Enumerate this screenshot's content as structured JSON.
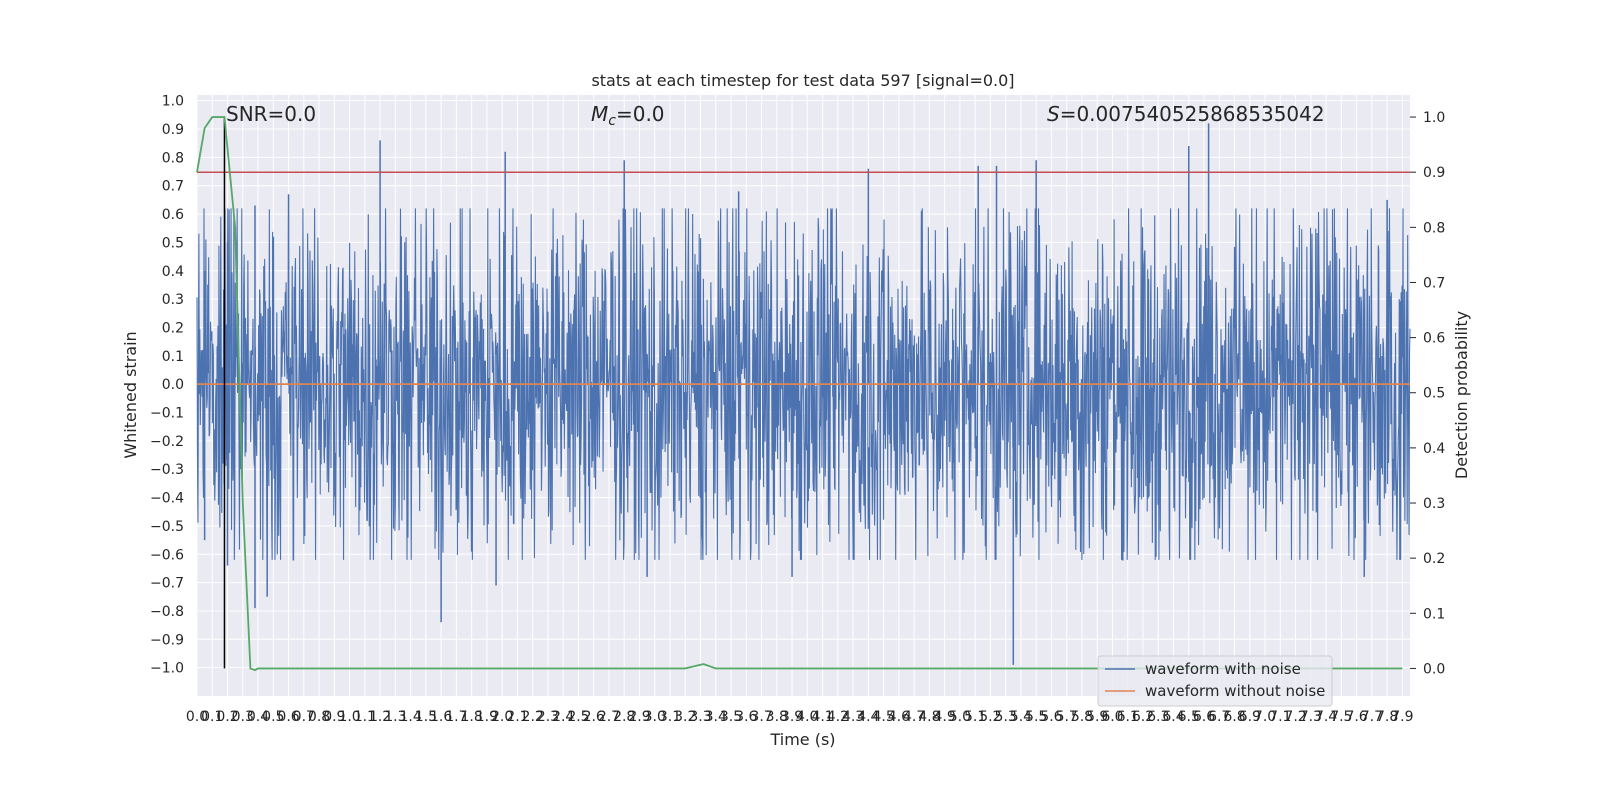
{
  "chart_data": {
    "type": "line",
    "title": "stats at each timestep for test data 597 [signal=0.0]",
    "xlabel": "Time (s)",
    "ylabel": "Whitened strain",
    "y2label": "Detection probability",
    "xlim": [
      0.0,
      7.95
    ],
    "ylim": [
      -1.1,
      1.02
    ],
    "y2lim": [
      -0.05,
      1.04
    ],
    "x_ticks_step": 0.1,
    "x_tick_count": 80,
    "y_ticks": [
      -1.0,
      -0.9,
      -0.8,
      -0.7,
      -0.6,
      -0.5,
      -0.4,
      -0.3,
      -0.2,
      -0.1,
      0.0,
      0.1,
      0.2,
      0.3,
      0.4,
      0.5,
      0.6,
      0.7,
      0.8,
      0.9,
      1.0
    ],
    "y2_ticks": [
      0.0,
      0.1,
      0.2,
      0.3,
      0.4,
      0.5,
      0.6,
      0.7,
      0.8,
      0.9,
      1.0
    ],
    "grid": true,
    "legend_position": "lower-right",
    "annotations": {
      "snr": "SNR=0.0",
      "mc_symbol": "M",
      "mc_sub": "c",
      "mc_value": "=0.0",
      "s_symbol": "S",
      "s_value": "=0.007540525868535042"
    },
    "series": [
      {
        "name": "waveform with noise",
        "color": "#4c72b0",
        "axis": "left",
        "envelope_upper_peaks": [
          [
            0.05,
            0.4
          ],
          [
            0.2,
            0.5
          ],
          [
            0.38,
            0.63
          ],
          [
            0.6,
            0.67
          ],
          [
            1.2,
            0.86
          ],
          [
            2.02,
            0.82
          ],
          [
            2.8,
            0.79
          ],
          [
            3.55,
            0.68
          ],
          [
            4.4,
            0.76
          ],
          [
            5.12,
            0.77
          ],
          [
            5.24,
            0.77
          ],
          [
            5.5,
            0.79
          ],
          [
            6.5,
            0.84
          ],
          [
            6.63,
            0.92
          ],
          [
            7.8,
            0.65
          ]
        ],
        "envelope_lower_peaks": [
          [
            0.05,
            -0.55
          ],
          [
            0.2,
            -0.64
          ],
          [
            0.38,
            -0.79
          ],
          [
            0.46,
            -0.75
          ],
          [
            1.6,
            -0.84
          ],
          [
            1.96,
            -0.71
          ],
          [
            2.95,
            -0.68
          ],
          [
            3.9,
            -0.68
          ],
          [
            5.35,
            -0.99
          ],
          [
            7.65,
            -0.68
          ]
        ]
      },
      {
        "name": "waveform without noise",
        "color": "#dd8452",
        "axis": "left",
        "x": [
          0.0,
          7.95
        ],
        "y": [
          0.0,
          0.0
        ]
      },
      {
        "name": "detection probability",
        "color": "#55a868",
        "axis": "right",
        "x": [
          0.0,
          0.05,
          0.1,
          0.18,
          0.25,
          0.3,
          0.35,
          0.38,
          0.4,
          3.2,
          3.32,
          3.4,
          7.9
        ],
        "y": [
          0.9,
          0.98,
          1.0,
          1.0,
          0.8,
          0.3,
          0.0,
          -0.003,
          0.0,
          0.0,
          0.008,
          0.0,
          0.0
        ]
      }
    ],
    "reference_lines": [
      {
        "orientation": "horizontal",
        "axis": "right",
        "value": 0.9,
        "color": "#c44e52"
      },
      {
        "orientation": "vertical",
        "axis": "x",
        "value": 0.18,
        "color": "#000000"
      }
    ]
  }
}
